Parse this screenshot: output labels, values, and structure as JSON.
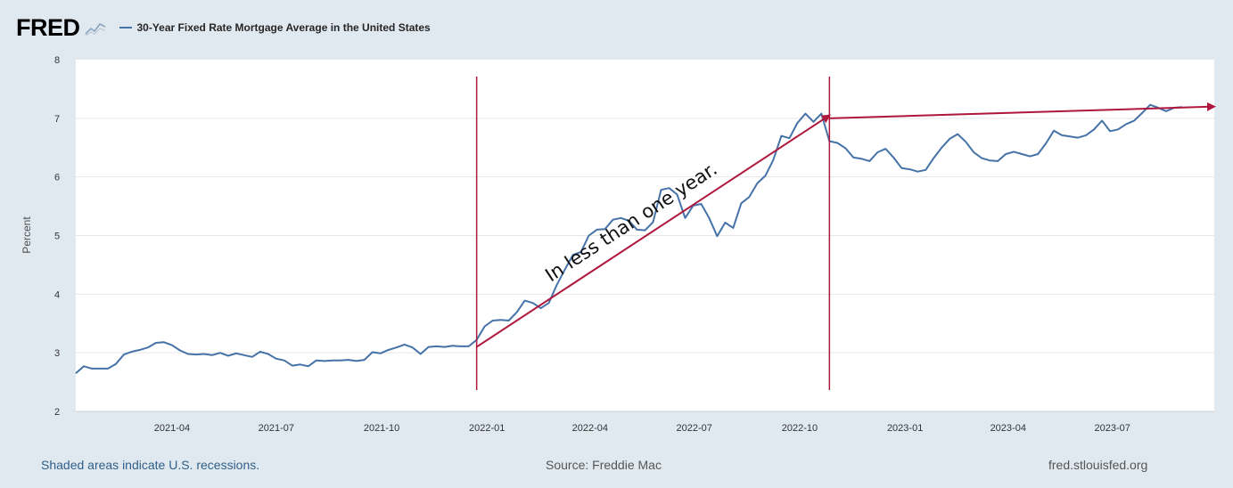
{
  "header": {
    "logo_text": "FRED",
    "logo_icon": "line-chart-icon",
    "series_title": "30-Year Fixed Rate Mortgage Average in the United States",
    "series_color": "#4572a7"
  },
  "annotation": {
    "text": "In less than one year.",
    "color": "#b0173d"
  },
  "footer": {
    "recessions_note": "Shaded areas indicate U.S. recessions.",
    "source": "Source: Freddie Mac",
    "site": "fred.stlouisfed.org"
  },
  "chart_data": {
    "type": "line",
    "title": "30-Year Fixed Rate Mortgage Average in the United States",
    "xlabel": "",
    "ylabel": "Percent",
    "ylim": [
      2,
      8
    ],
    "y_ticks": [
      "2",
      "3",
      "4",
      "5",
      "6",
      "7",
      "8"
    ],
    "x_ticks": [
      "2021-04",
      "2021-07",
      "2021-10",
      "2022-01",
      "2022-04",
      "2022-07",
      "2022-10",
      "2023-01",
      "2023-04",
      "2023-07"
    ],
    "x_range": [
      "2021-01-07",
      "2023-09-28"
    ],
    "grid": true,
    "series": [
      {
        "name": "30-Year Fixed Rate Mortgage Average in the United States",
        "frequency": "weekly",
        "start": "2021-01-07",
        "values": [
          2.65,
          2.77,
          2.73,
          2.73,
          2.73,
          2.81,
          2.97,
          3.02,
          3.05,
          3.09,
          3.17,
          3.18,
          3.13,
          3.04,
          2.98,
          2.97,
          2.98,
          2.96,
          3.0,
          2.95,
          2.99,
          2.96,
          2.93,
          3.02,
          2.98,
          2.9,
          2.87,
          2.78,
          2.8,
          2.77,
          2.87,
          2.86,
          2.87,
          2.87,
          2.88,
          2.86,
          2.88,
          3.01,
          2.99,
          3.05,
          3.09,
          3.14,
          3.09,
          2.98,
          3.1,
          3.11,
          3.1,
          3.12,
          3.11,
          3.11,
          3.22,
          3.45,
          3.55,
          3.56,
          3.55,
          3.69,
          3.89,
          3.85,
          3.76,
          3.85,
          4.16,
          4.42,
          4.67,
          4.72,
          5.0,
          5.1,
          5.11,
          5.27,
          5.3,
          5.25,
          5.1,
          5.09,
          5.23,
          5.78,
          5.81,
          5.7,
          5.3,
          5.51,
          5.54,
          5.3,
          4.99,
          5.22,
          5.13,
          5.55,
          5.66,
          5.89,
          6.02,
          6.29,
          6.7,
          6.66,
          6.92,
          7.08,
          6.94,
          7.08,
          6.61,
          6.58,
          6.49,
          6.33,
          6.31,
          6.27,
          6.42,
          6.48,
          6.33,
          6.15,
          6.13,
          6.09,
          6.12,
          6.32,
          6.5,
          6.65,
          6.73,
          6.6,
          6.42,
          6.32,
          6.28,
          6.27,
          6.39,
          6.43,
          6.39,
          6.35,
          6.39,
          6.57,
          6.79,
          6.71,
          6.69,
          6.67,
          6.71,
          6.81,
          6.96,
          6.78,
          6.81,
          6.9,
          6.96,
          7.09,
          7.23,
          7.18,
          7.12,
          7.18,
          7.19
        ]
      }
    ],
    "annotations": {
      "vertical_lines": [
        "2021-12-23",
        "2022-10-27"
      ],
      "arrows": [
        {
          "from": [
            "2021-12-23",
            3.1
          ],
          "to": [
            "2022-10-27",
            7.05
          ]
        },
        {
          "from": [
            "2022-10-27",
            7.0
          ],
          "to": [
            "2023-09-28",
            7.2
          ]
        }
      ],
      "text": "In less than one year."
    }
  }
}
